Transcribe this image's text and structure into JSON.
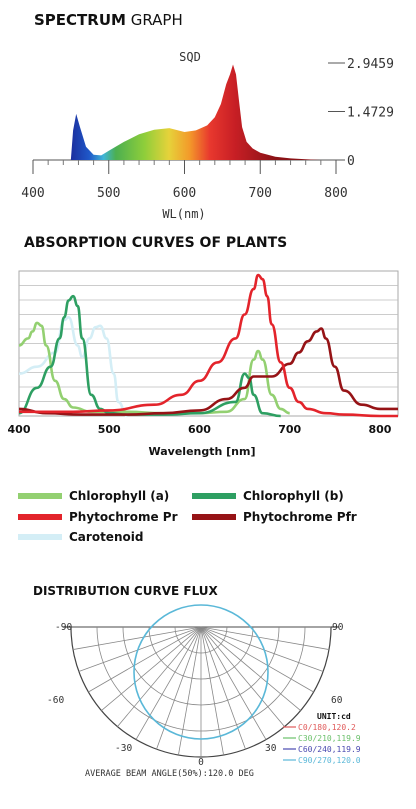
{
  "spectrum": {
    "title_bold": "SPECTRUM",
    "title_light": " GRAPH",
    "chart_label": "SQD",
    "y_ticks": [
      "2.9459",
      "1.4729",
      "0"
    ],
    "x_ticks": [
      "400",
      "500",
      "600",
      "700",
      "800"
    ],
    "xlabel": "WL(nm)"
  },
  "absorption": {
    "title": "ABSORPTION CURVES OF PLANTS",
    "x_ticks": [
      "400",
      "500",
      "600",
      "700",
      "800"
    ],
    "xlabel": "Wavelength [nm]"
  },
  "legend": {
    "items": [
      {
        "label": "Chlorophyll (a)",
        "color": "#93d071"
      },
      {
        "label": "Chlorophyll (b)",
        "color": "#2e9f62"
      },
      {
        "label": "Phytochrome Pr",
        "color": "#e3242b"
      },
      {
        "label": "Phytochrome Pfr",
        "color": "#961316"
      },
      {
        "label": "Carotenoid",
        "color": "#d4eef6"
      }
    ]
  },
  "distribution": {
    "title": "DISTRIBUTION CURVE FLUX",
    "angle_labels": {
      "left_top": "-90",
      "right_top": "90",
      "left_mid": "-60",
      "right_mid": "60",
      "left_low": "-30",
      "right_low": "30",
      "bottom": "0"
    },
    "unit": "UNIT:cd",
    "series": [
      {
        "label": "C0/180,120.2",
        "color": "#e05a5a"
      },
      {
        "label": "C30/210,119.9",
        "color": "#6cc06c"
      },
      {
        "label": "C60/240,119.9",
        "color": "#4a4ab0"
      },
      {
        "label": "C90/270,120.0",
        "color": "#5ab8d8"
      }
    ],
    "footer": "AVERAGE BEAM ANGLE(50%):120.0 DEG"
  },
  "chart_data": [
    {
      "type": "area",
      "title": "SQD",
      "xlabel": "WL(nm)",
      "ylabel": "",
      "xlim": [
        400,
        800
      ],
      "ylim": [
        0,
        2.9459
      ],
      "yticks": [
        0,
        1.4729,
        2.9459
      ],
      "x": [
        450,
        453,
        457,
        462,
        470,
        480,
        490,
        500,
        520,
        540,
        560,
        580,
        600,
        615,
        630,
        640,
        648,
        655,
        660,
        664,
        668,
        672,
        676,
        682,
        690,
        700,
        720,
        740,
        760,
        780
      ],
      "values": [
        0.02,
        0.9,
        1.4,
        1.0,
        0.4,
        0.16,
        0.14,
        0.28,
        0.55,
        0.78,
        0.92,
        0.97,
        0.85,
        0.9,
        1.05,
        1.3,
        1.7,
        2.3,
        2.6,
        2.9,
        2.6,
        1.8,
        1.0,
        0.55,
        0.35,
        0.22,
        0.1,
        0.05,
        0.02,
        0.0
      ]
    },
    {
      "type": "line",
      "title": "ABSORPTION CURVES OF PLANTS",
      "xlabel": "Wavelength [nm]",
      "xlim": [
        400,
        820
      ],
      "ylim": [
        0,
        1
      ],
      "series": [
        {
          "name": "Chlorophyll (a)",
          "x": [
            400,
            410,
            415,
            420,
            425,
            430,
            440,
            450,
            460,
            480,
            520,
            560,
            600,
            630,
            650,
            660,
            665,
            670,
            680,
            690,
            700
          ],
          "values": [
            0.5,
            0.55,
            0.6,
            0.66,
            0.64,
            0.5,
            0.25,
            0.12,
            0.06,
            0.03,
            0.03,
            0.02,
            0.02,
            0.03,
            0.12,
            0.4,
            0.46,
            0.4,
            0.15,
            0.05,
            0.02
          ]
        },
        {
          "name": "Chlorophyll (b)",
          "x": [
            400,
            420,
            435,
            445,
            450,
            455,
            460,
            465,
            470,
            480,
            490,
            500,
            520,
            560,
            600,
            640,
            650,
            655,
            660,
            670,
            690
          ],
          "values": [
            0.02,
            0.2,
            0.35,
            0.55,
            0.7,
            0.82,
            0.85,
            0.78,
            0.55,
            0.15,
            0.05,
            0.02,
            0.01,
            0.01,
            0.02,
            0.1,
            0.3,
            0.27,
            0.15,
            0.02,
            0.0
          ]
        },
        {
          "name": "Phytochrome Pr",
          "x": [
            400,
            430,
            460,
            500,
            550,
            580,
            600,
            620,
            640,
            650,
            660,
            665,
            670,
            675,
            680,
            690,
            700,
            710,
            720,
            740,
            760,
            800,
            820
          ],
          "values": [
            0.03,
            0.03,
            0.03,
            0.04,
            0.08,
            0.15,
            0.25,
            0.38,
            0.55,
            0.72,
            0.9,
            1.0,
            0.97,
            0.85,
            0.65,
            0.38,
            0.2,
            0.1,
            0.05,
            0.02,
            0.01,
            0.0,
            0.0
          ]
        },
        {
          "name": "Phytochrome Pfr",
          "x": [
            400,
            430,
            470,
            520,
            560,
            600,
            630,
            650,
            660,
            680,
            700,
            710,
            720,
            730,
            735,
            740,
            750,
            760,
            780,
            800,
            820
          ],
          "values": [
            0.05,
            0.02,
            0.01,
            0.01,
            0.02,
            0.04,
            0.12,
            0.2,
            0.28,
            0.28,
            0.37,
            0.45,
            0.53,
            0.6,
            0.62,
            0.55,
            0.35,
            0.18,
            0.08,
            0.05,
            0.05
          ]
        },
        {
          "name": "Carotenoid",
          "x": [
            400,
            420,
            440,
            450,
            455,
            465,
            470,
            478,
            485,
            490,
            497,
            505,
            510,
            520
          ],
          "values": [
            0.3,
            0.35,
            0.45,
            0.68,
            0.7,
            0.5,
            0.42,
            0.55,
            0.63,
            0.64,
            0.55,
            0.3,
            0.1,
            0.0
          ]
        }
      ]
    },
    {
      "type": "line",
      "title": "DISTRIBUTION CURVE FLUX",
      "xlabel": "",
      "ylabel": "",
      "series": [
        {
          "name": "C0/180,120.2",
          "beam_angle": 120.2
        },
        {
          "name": "C30/210,119.9",
          "beam_angle": 119.9
        },
        {
          "name": "C60/240,119.9",
          "beam_angle": 119.9
        },
        {
          "name": "C90/270,120.0",
          "beam_angle": 120.0
        }
      ]
    }
  ]
}
